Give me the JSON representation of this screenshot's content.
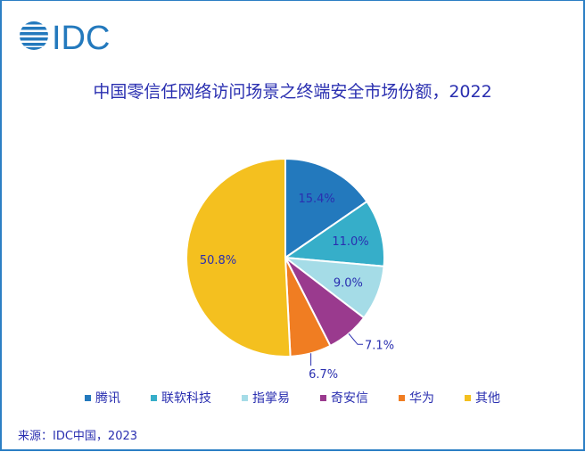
{
  "logo_text": "IDC",
  "source": "来源：IDC中国，2023",
  "chart_data": {
    "type": "pie",
    "title": "中国零信任网络访问场景之终端安全市场份额，2022",
    "start": "top-clockwise",
    "legend_position": "bottom",
    "slices": [
      {
        "label": "腾讯",
        "value": 15.4,
        "text": "15.4%",
        "color": "#2379bd"
      },
      {
        "label": "联软科技",
        "value": 11.0,
        "text": "11.0%",
        "color": "#36aec9"
      },
      {
        "label": "指掌易",
        "value": 9.0,
        "text": "9.0%",
        "color": "#a5dce7"
      },
      {
        "label": "奇安信",
        "value": 7.1,
        "text": "7.1%",
        "color": "#9a3a8e"
      },
      {
        "label": "华为",
        "value": 6.7,
        "text": "6.7%",
        "color": "#f07d22"
      },
      {
        "label": "其他",
        "value": 50.8,
        "text": "50.8%",
        "color": "#f4c01f"
      }
    ]
  }
}
